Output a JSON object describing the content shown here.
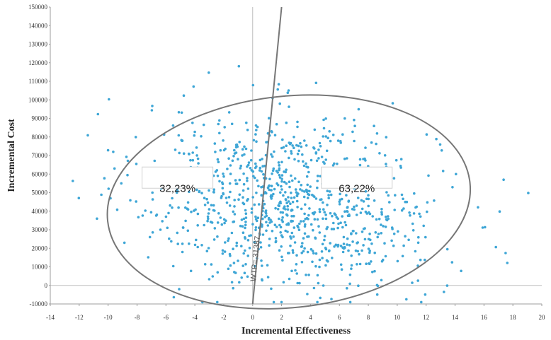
{
  "chart_data": {
    "type": "scatter",
    "xlabel": "Incremental Effectiveness",
    "ylabel": "Incremental Cost",
    "xlim": [
      -14,
      20
    ],
    "ylim": [
      -10000,
      150000
    ],
    "x_ticks": [
      "-14",
      "-12",
      "-10",
      "-8",
      "-6",
      "-4",
      "-2",
      "0",
      "2",
      "4",
      "6",
      "8",
      "10",
      "12",
      "14",
      "16",
      "18",
      "20"
    ],
    "y_ticks": [
      "-10000",
      "0",
      "10000",
      "20000",
      "30000",
      "40000",
      "50000",
      "60000",
      "70000",
      "80000",
      "90000",
      "100000",
      "110000",
      "120000",
      "130000",
      "140000",
      "150000"
    ],
    "point_color": "#3ea6d6",
    "point_count": 1000,
    "ellipse": {
      "center": [
        2.5,
        45000
      ],
      "semi_x": 12.6,
      "semi_y": 57000,
      "rotation_deg": -6,
      "color": "#777777"
    },
    "wtp_line": {
      "label": "WTP= 31387",
      "from": [
        0,
        -10000
      ],
      "to": [
        2,
        150000
      ],
      "color": "#777777"
    },
    "annotations": [
      {
        "text": "32,23%",
        "x": -5.2,
        "y": 60000
      },
      {
        "text": "63,22%",
        "x": 7.2,
        "y": 60000
      }
    ],
    "grid": false
  }
}
